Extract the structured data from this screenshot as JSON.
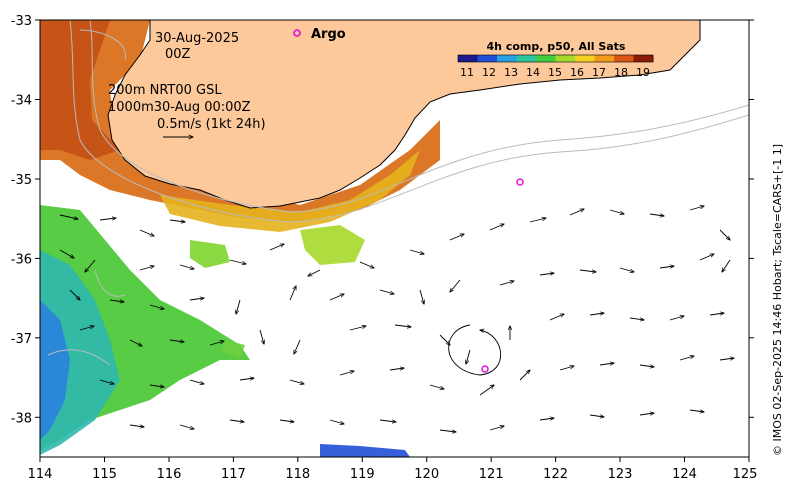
{
  "map": {
    "x_ticks": [
      "114",
      "115",
      "116",
      "117",
      "118",
      "119",
      "120",
      "121",
      "122",
      "123",
      "124",
      "125"
    ],
    "y_ticks": [
      "-33",
      "-34",
      "-35",
      "-36",
      "-37",
      "-38"
    ],
    "lon_range": [
      114,
      125
    ],
    "lat_range": [
      -38.5,
      -33
    ]
  },
  "annotations": {
    "date": "30-Aug-2025",
    "time": "00Z",
    "depth_line1": "200m  NRT00 GSL",
    "depth_line2": "1000m30-Aug 00:00Z",
    "scale_label": "0.5m/s (1kt 24h)"
  },
  "legend": {
    "argo_label": "Argo",
    "colorbar_title": "4h comp, p50, All Sats",
    "colorbar_ticks": [
      "11",
      "12",
      "13",
      "14",
      "15",
      "16",
      "17",
      "18",
      "19"
    ],
    "colors": [
      "#1a1a8c",
      "#1f4fd6",
      "#2aa0e0",
      "#2cc7a0",
      "#3fcf3f",
      "#a6d92b",
      "#f2d21f",
      "#f29a1c",
      "#d95716",
      "#8c1a0a"
    ]
  },
  "argo_floats": [
    {
      "lon": 117.98,
      "lat": -33.17
    },
    {
      "lon": 121.45,
      "lat": -35.05
    },
    {
      "lon": 120.9,
      "lat": -37.38
    }
  ],
  "credit": "© IMOS 02-Sep-2025 14:46 Hobart; Tscale=CARS+[-1 1]",
  "colors": {
    "land": "#fdc99a",
    "warm_sst": "#d9701a",
    "argo": "#e01fd6"
  }
}
